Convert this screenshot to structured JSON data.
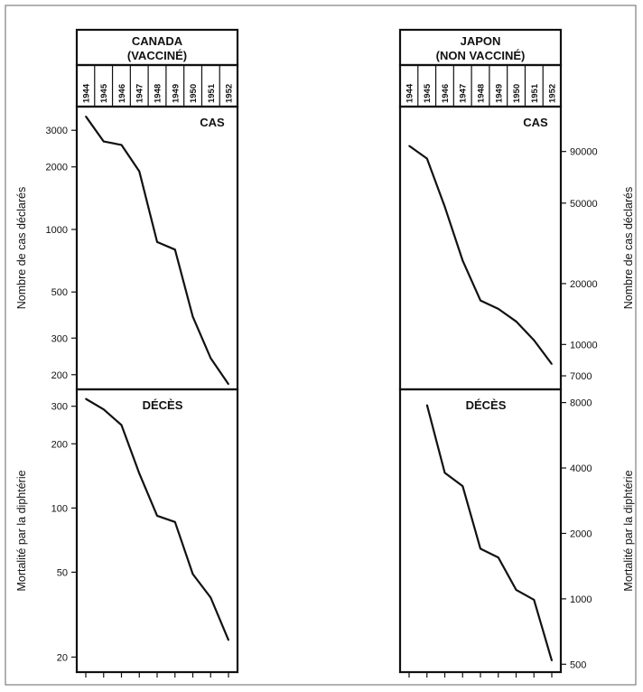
{
  "chart_data": [
    {
      "type": "line",
      "title": "CANADA",
      "subtitle": "(VACCINÉ)",
      "categories": [
        "1944",
        "1945",
        "1946",
        "1947",
        "1948",
        "1949",
        "1950",
        "1951",
        "1952"
      ],
      "panels": [
        {
          "label": "CAS",
          "ylabel": "Nombre de cas déclarés",
          "yscale": "log",
          "ylim": [
            170,
            3900
          ],
          "yticks": [
            "3000",
            "2000",
            "1000",
            "500",
            "300",
            "200"
          ],
          "x": [
            1944,
            1945,
            1946,
            1947,
            1948,
            1949,
            1950,
            1951,
            1952
          ],
          "values": [
            3500,
            2650,
            2550,
            1900,
            870,
            800,
            380,
            240,
            180
          ]
        },
        {
          "label": "DÉCÈS",
          "ylabel": "Mortalité par la diphtérie",
          "yscale": "log",
          "ylim": [
            17,
            360
          ],
          "yticks": [
            "300",
            "200",
            "100",
            "50",
            "20"
          ],
          "x": [
            1944,
            1945,
            1946,
            1947,
            1948,
            1949,
            1950,
            1951,
            1952
          ],
          "values": [
            325,
            290,
            245,
            145,
            92,
            86,
            49,
            38,
            24
          ]
        }
      ]
    },
    {
      "type": "line",
      "title": "JAPON",
      "subtitle": "(NON VACCINÉ)",
      "categories": [
        "1944",
        "1945",
        "1946",
        "1947",
        "1948",
        "1949",
        "1950",
        "1951",
        "1952"
      ],
      "panels": [
        {
          "label": "CAS",
          "ylabel": "Nombre de cas déclarés",
          "yscale": "log",
          "ylim": [
            6000,
            150000
          ],
          "yticks": [
            "90000",
            "50000",
            "20000",
            "10000",
            "7000"
          ],
          "x": [
            1944,
            1945,
            1946,
            1947,
            1948,
            1949,
            1950,
            1951,
            1952
          ],
          "values": [
            96000,
            83000,
            48000,
            26000,
            16500,
            15000,
            13000,
            10500,
            8000
          ]
        },
        {
          "label": "DÉCÈS",
          "ylabel": "Mortalité par la diphtérie",
          "yscale": "log",
          "ylim": [
            460,
            9200
          ],
          "yticks": [
            "8000",
            "4000",
            "2000",
            "1000",
            "500"
          ],
          "x": [
            1945,
            1946,
            1947,
            1948,
            1949,
            1950,
            1951,
            1952
          ],
          "values": [
            7800,
            3800,
            3300,
            1700,
            1550,
            1100,
            990,
            520
          ]
        }
      ]
    }
  ]
}
